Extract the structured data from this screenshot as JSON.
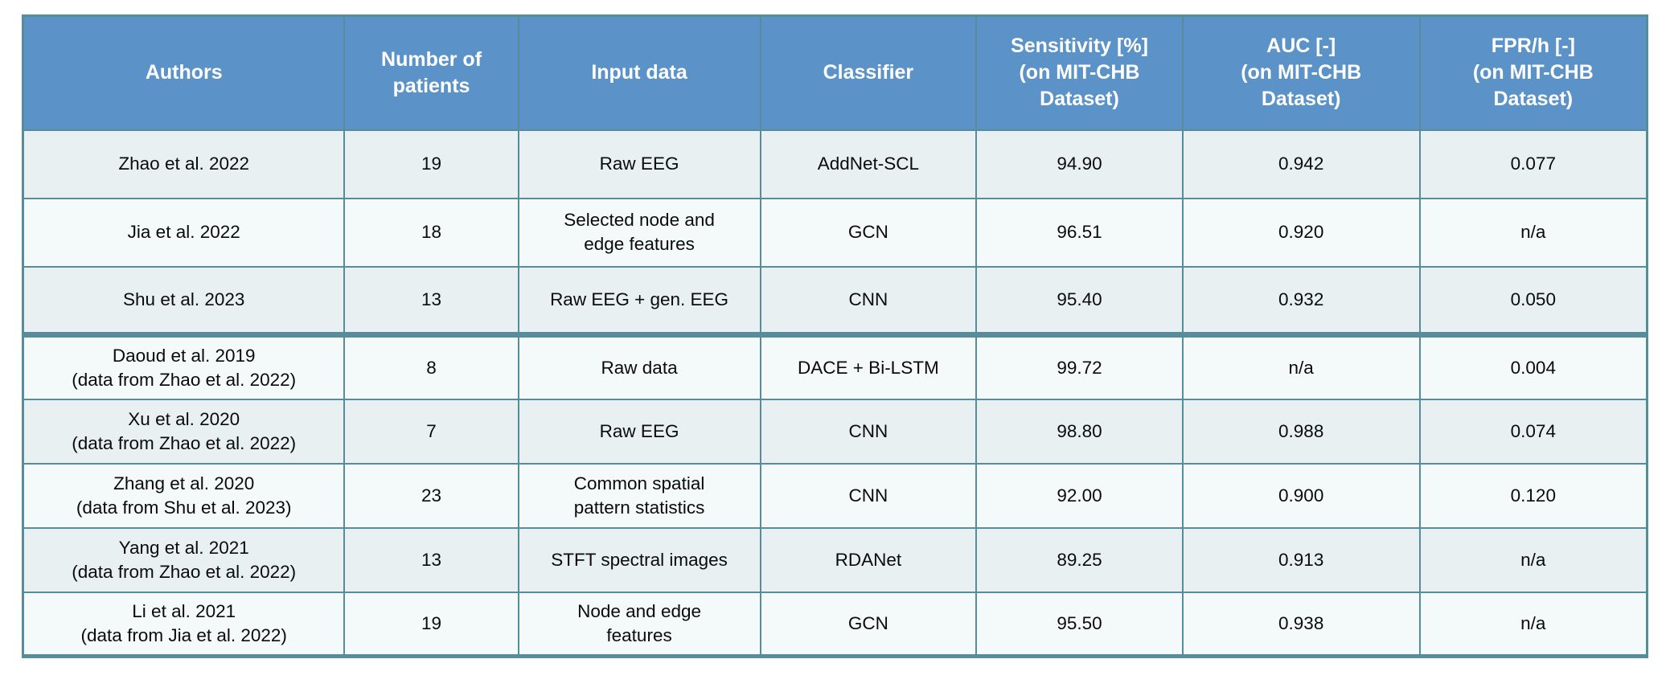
{
  "colors": {
    "header-bg": "#5b92c8",
    "header-text": "#ffffff",
    "border": "#578d9b",
    "row-odd": "#e9f0f2",
    "row-even": "#f4f9f9"
  },
  "table": {
    "columns": [
      {
        "key": "authors",
        "label": "Authors"
      },
      {
        "key": "patients",
        "label": "Number of\npatients"
      },
      {
        "key": "input-data",
        "label": "Input data"
      },
      {
        "key": "classifier",
        "label": "Classifier"
      },
      {
        "key": "sensitivity",
        "label": "Sensitivity [%]\n(on MIT-CHB\nDataset)"
      },
      {
        "key": "auc",
        "label": "AUC [-]\n(on MIT-CHB\nDataset)"
      },
      {
        "key": "fpr",
        "label": "FPR/h [-]\n(on MIT-CHB\nDataset)"
      }
    ],
    "divider_before_row_index": 3,
    "rows": [
      {
        "cells": [
          "Zhao et al. 2022",
          "19",
          "Raw EEG",
          "AddNet-SCL",
          "94.90",
          "0.942",
          "0.077"
        ]
      },
      {
        "cells": [
          "Jia et al. 2022",
          "18",
          "Selected node and\nedge features",
          "GCN",
          "96.51",
          "0.920",
          "n/a"
        ]
      },
      {
        "cells": [
          "Shu et al. 2023",
          "13",
          "Raw EEG + gen. EEG",
          "CNN",
          "95.40",
          "0.932",
          "0.050"
        ]
      },
      {
        "cells": [
          "Daoud et al. 2019\n(data from Zhao et al. 2022)",
          "8",
          "Raw data",
          "DACE + Bi-LSTM",
          "99.72",
          "n/a",
          "0.004"
        ]
      },
      {
        "cells": [
          "Xu et al. 2020\n(data from Zhao et al. 2022)",
          "7",
          "Raw EEG",
          "CNN",
          "98.80",
          "0.988",
          "0.074"
        ]
      },
      {
        "cells": [
          "Zhang et al. 2020\n(data from Shu et al. 2023)",
          "23",
          "Common spatial\npattern statistics",
          "CNN",
          "92.00",
          "0.900",
          "0.120"
        ]
      },
      {
        "cells": [
          "Yang et al. 2021\n(data from Zhao et al. 2022)",
          "13",
          "STFT spectral images",
          "RDANet",
          "89.25",
          "0.913",
          "n/a"
        ]
      },
      {
        "cells": [
          "Li et al. 2021\n(data from Jia et al. 2022)",
          "19",
          "Node and edge\nfeatures",
          "GCN",
          "95.50",
          "0.938",
          "n/a"
        ]
      }
    ]
  },
  "chart_data": {
    "type": "table",
    "title": "",
    "columns": [
      "Authors",
      "Number of patients",
      "Input data",
      "Classifier",
      "Sensitivity [%] (on MIT-CHB Dataset)",
      "AUC [-] (on MIT-CHB Dataset)",
      "FPR/h [-] (on MIT-CHB Dataset)"
    ],
    "rows": [
      [
        "Zhao et al. 2022",
        19,
        "Raw EEG",
        "AddNet-SCL",
        94.9,
        0.942,
        0.077
      ],
      [
        "Jia et al. 2022",
        18,
        "Selected node and edge features",
        "GCN",
        96.51,
        0.92,
        "n/a"
      ],
      [
        "Shu et al. 2023",
        13,
        "Raw EEG + gen. EEG",
        "CNN",
        95.4,
        0.932,
        0.05
      ],
      [
        "Daoud et al. 2019 (data from Zhao et al. 2022)",
        8,
        "Raw data",
        "DACE + Bi-LSTM",
        99.72,
        "n/a",
        0.004
      ],
      [
        "Xu et al. 2020 (data from Zhao et al. 2022)",
        7,
        "Raw EEG",
        "CNN",
        98.8,
        0.988,
        0.074
      ],
      [
        "Zhang et al. 2020 (data from Shu et al. 2023)",
        23,
        "Common spatial pattern statistics",
        "CNN",
        92.0,
        0.9,
        0.12
      ],
      [
        "Yang et al. 2021 (data from Zhao et al. 2022)",
        13,
        "STFT spectral images",
        "RDANet",
        89.25,
        0.913,
        "n/a"
      ],
      [
        "Li et al. 2021 (data from Jia et al. 2022)",
        19,
        "Node and edge features",
        "GCN",
        95.5,
        0.938,
        "n/a"
      ]
    ],
    "layout_hints": {
      "thick_divider_after_data_row": 3,
      "header_bg": "#5b92c8",
      "grid": true
    }
  }
}
